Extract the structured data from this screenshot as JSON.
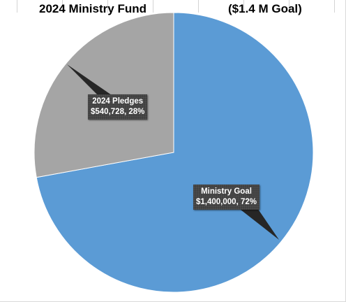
{
  "chart_data": {
    "type": "pie",
    "title": "2024 Ministry Fund",
    "subtitle": "($1.4 M Goal)",
    "slices": [
      {
        "category": "Ministry Goal",
        "value": 1400000,
        "value_label": "$1,400,000",
        "percent_label": "72%",
        "color": "#5b9bd5"
      },
      {
        "category": "2024 Pledges",
        "value": 540728,
        "value_label": "$540,728",
        "percent_label": "28%",
        "color": "#a5a5a5"
      }
    ],
    "start": "12 o'clock",
    "direction": "clockwise",
    "legend": "none",
    "data_label_style": "callout"
  }
}
